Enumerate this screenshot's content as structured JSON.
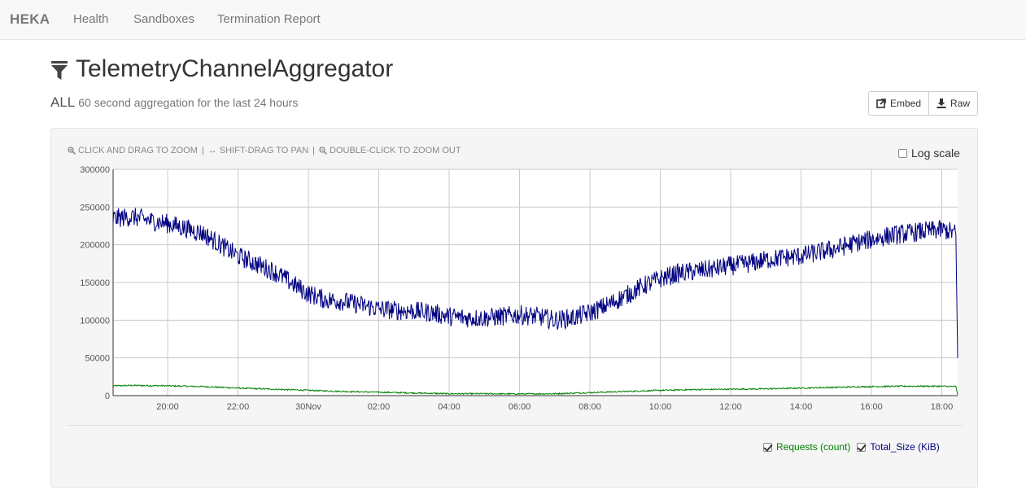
{
  "nav": {
    "brand": "HEKA",
    "links": [
      "Health",
      "Sandboxes",
      "Termination Report"
    ]
  },
  "header": {
    "title": "TelemetryChannelAggregator",
    "subtitle_main": "ALL",
    "subtitle_detail": "60 second aggregation for the last 24 hours"
  },
  "buttons": {
    "embed": "Embed",
    "raw": "Raw"
  },
  "chart_panel": {
    "help_zoom": "CLICK AND DRAG TO ZOOM",
    "help_pan": "SHIFT-DRAG TO PAN",
    "help_zoomout": "DOUBLE-CLICK TO ZOOM OUT",
    "separator": "|",
    "log_scale_label": "Log scale",
    "log_scale_checked": false
  },
  "colors": {
    "requests": "#008000",
    "total_size": "#000080",
    "grid": "#c8c8c8"
  },
  "chart_data": {
    "type": "line",
    "x_tick_labels": [
      "20:00",
      "22:00",
      "30Nov",
      "02:00",
      "04:00",
      "06:00",
      "08:00",
      "10:00",
      "12:00",
      "14:00",
      "16:00",
      "18:00"
    ],
    "y_tick_labels": [
      "0",
      "50000",
      "100000",
      "150000",
      "200000",
      "250000",
      "300000"
    ],
    "x_range_hours": [
      18.45,
      42.45
    ],
    "x_ticks_hours": [
      20,
      22,
      24,
      26,
      28,
      30,
      32,
      34,
      36,
      38,
      40,
      42
    ],
    "ylim": [
      0,
      300000
    ],
    "grid": true,
    "series": [
      {
        "name": "Total_Size (KiB)",
        "points": [
          [
            18.45,
            235000
          ],
          [
            19.0,
            237000
          ],
          [
            19.5,
            232000
          ],
          [
            20.0,
            228000
          ],
          [
            20.5,
            222000
          ],
          [
            21.0,
            215000
          ],
          [
            21.5,
            200000
          ],
          [
            22.0,
            185000
          ],
          [
            22.5,
            175000
          ],
          [
            23.0,
            165000
          ],
          [
            23.5,
            150000
          ],
          [
            24.0,
            135000
          ],
          [
            24.5,
            127000
          ],
          [
            25.0,
            125000
          ],
          [
            25.5,
            120000
          ],
          [
            26.0,
            115000
          ],
          [
            26.5,
            113000
          ],
          [
            27.0,
            112000
          ],
          [
            27.5,
            110000
          ],
          [
            28.0,
            105000
          ],
          [
            28.5,
            103000
          ],
          [
            29.0,
            103000
          ],
          [
            29.5,
            105000
          ],
          [
            30.0,
            107000
          ],
          [
            30.5,
            105000
          ],
          [
            31.0,
            100000
          ],
          [
            31.5,
            103000
          ],
          [
            32.0,
            110000
          ],
          [
            32.5,
            120000
          ],
          [
            33.0,
            132000
          ],
          [
            33.5,
            145000
          ],
          [
            34.0,
            155000
          ],
          [
            34.5,
            162000
          ],
          [
            35.0,
            165000
          ],
          [
            35.5,
            168000
          ],
          [
            36.0,
            172000
          ],
          [
            36.5,
            175000
          ],
          [
            37.0,
            180000
          ],
          [
            37.5,
            183000
          ],
          [
            38.0,
            185000
          ],
          [
            38.5,
            190000
          ],
          [
            39.0,
            195000
          ],
          [
            39.5,
            202000
          ],
          [
            40.0,
            207000
          ],
          [
            40.5,
            212000
          ],
          [
            41.0,
            215000
          ],
          [
            41.5,
            218000
          ],
          [
            42.0,
            220000
          ],
          [
            42.2,
            218000
          ],
          [
            42.4,
            215000
          ],
          [
            42.45,
            50000
          ]
        ]
      },
      {
        "name": "Requests (count)",
        "points": [
          [
            18.45,
            13000
          ],
          [
            19.0,
            13500
          ],
          [
            20.0,
            13000
          ],
          [
            21.0,
            12000
          ],
          [
            22.0,
            10000
          ],
          [
            23.0,
            8500
          ],
          [
            24.0,
            7000
          ],
          [
            25.0,
            5500
          ],
          [
            26.0,
            4500
          ],
          [
            27.0,
            3500
          ],
          [
            28.0,
            2500
          ],
          [
            29.0,
            2500
          ],
          [
            30.0,
            2300
          ],
          [
            31.0,
            2500
          ],
          [
            32.0,
            4000
          ],
          [
            33.0,
            5500
          ],
          [
            34.0,
            7000
          ],
          [
            35.0,
            8000
          ],
          [
            36.0,
            8500
          ],
          [
            37.0,
            9000
          ],
          [
            38.0,
            10000
          ],
          [
            39.0,
            11000
          ],
          [
            40.0,
            12000
          ],
          [
            41.0,
            12500
          ],
          [
            42.0,
            12500
          ],
          [
            42.4,
            12000
          ],
          [
            42.45,
            1000
          ]
        ]
      }
    ],
    "legend": [
      {
        "label": "Requests (count)",
        "checked": true
      },
      {
        "label": "Total_Size (KiB)",
        "checked": true
      }
    ]
  }
}
